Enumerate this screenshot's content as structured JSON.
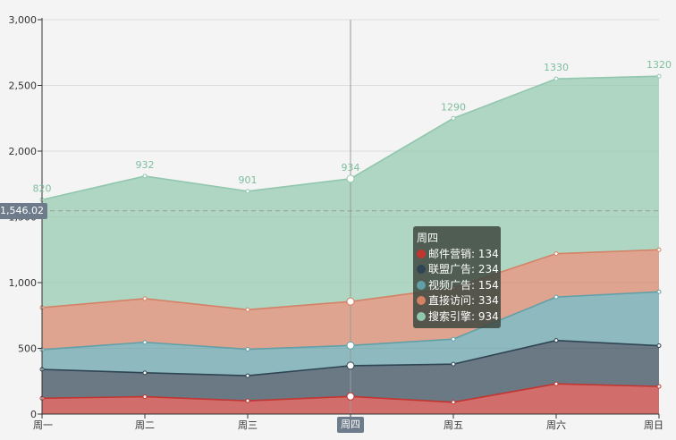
{
  "chart_data": {
    "type": "area",
    "stacked": true,
    "categories": [
      "周一",
      "周二",
      "周三",
      "周四",
      "周五",
      "周六",
      "周日"
    ],
    "series": [
      {
        "name": "邮件营销",
        "values": [
          120,
          132,
          101,
          134,
          90,
          230,
          210
        ],
        "color": "#c23531"
      },
      {
        "name": "联盟广告",
        "values": [
          220,
          182,
          191,
          234,
          290,
          330,
          310
        ],
        "color": "#2f4554"
      },
      {
        "name": "视频广告",
        "values": [
          150,
          232,
          201,
          154,
          190,
          330,
          410
        ],
        "color": "#61a0a8"
      },
      {
        "name": "直接访问",
        "values": [
          320,
          332,
          301,
          334,
          390,
          330,
          320
        ],
        "color": "#d48265"
      },
      {
        "name": "搜索引擎",
        "values": [
          820,
          932,
          901,
          934,
          1290,
          1330,
          1320
        ],
        "color": "#91c7ae"
      }
    ],
    "top_labels": [
      "820",
      "932",
      "901",
      "934",
      "1290",
      "1330",
      "1320"
    ],
    "y_ticks": [
      "0",
      "500",
      "1,000",
      "1,500",
      "2,000",
      "2,500",
      "3,000"
    ],
    "ylim": [
      0,
      3000
    ],
    "pointer_value": 1546.02,
    "pointer_label": "1,546.02",
    "highlight_category_index": 3,
    "highlight_category_label": "周四",
    "legend_position": "none"
  },
  "tooltip": {
    "title": "周四",
    "rows": [
      {
        "label": "邮件营销: 134",
        "color": "#c23531"
      },
      {
        "label": "联盟广告: 234",
        "color": "#2f4554"
      },
      {
        "label": "视频广告: 154",
        "color": "#61a0a8"
      },
      {
        "label": "直接访问: 334",
        "color": "#d48265"
      },
      {
        "label": "搜索引擎: 934",
        "color": "#91c7ae"
      }
    ]
  }
}
